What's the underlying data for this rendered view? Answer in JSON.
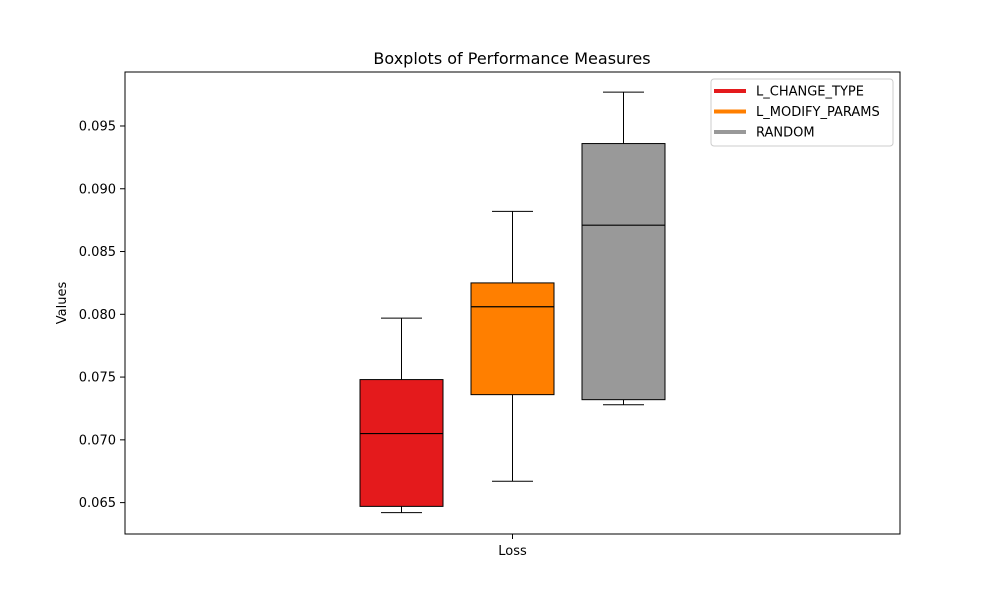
{
  "chart_data": {
    "type": "box",
    "title": "Boxplots of Performance Measures",
    "xlabel": "",
    "ylabel": "Values",
    "categories": [
      "Loss"
    ],
    "ylim": [
      0.0625,
      0.0993
    ],
    "yticks": [
      0.065,
      0.07,
      0.075,
      0.08,
      0.085,
      0.09,
      0.095
    ],
    "ytick_labels": [
      "0.065",
      "0.070",
      "0.075",
      "0.080",
      "0.085",
      "0.090",
      "0.095"
    ],
    "grid": false,
    "legend_position": "top-right",
    "series": [
      {
        "name": "L_CHANGE_TYPE",
        "color": "#e41a1c",
        "min": 0.0642,
        "q1": 0.0647,
        "median": 0.0705,
        "q3": 0.0748,
        "max": 0.0797
      },
      {
        "name": "L_MODIFY_PARAMS",
        "color": "#ff7f00",
        "min": 0.0667,
        "q1": 0.0736,
        "median": 0.0806,
        "q3": 0.0825,
        "max": 0.0882
      },
      {
        "name": "RANDOM",
        "color": "#999999",
        "min": 0.0728,
        "q1": 0.0732,
        "median": 0.0871,
        "q3": 0.0936,
        "max": 0.0977
      }
    ]
  }
}
